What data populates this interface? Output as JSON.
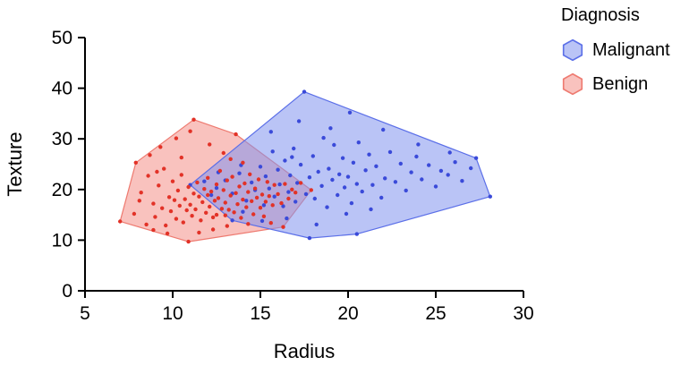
{
  "legend": {
    "title": "Diagnosis"
  },
  "chart_data": {
    "type": "scatter",
    "title": "",
    "xlabel": "Radius",
    "ylabel": "Texture",
    "xlim": [
      5,
      30
    ],
    "ylim": [
      0,
      50
    ],
    "x_ticks": [
      5,
      10,
      15,
      20,
      25,
      30
    ],
    "y_ticks": [
      0,
      10,
      20,
      30,
      40,
      50
    ],
    "grid": false,
    "legend_position": "top-right",
    "series": [
      {
        "name": "Malignant",
        "point_color": "#3a4ad9",
        "hull_fill": "#8293ee",
        "hull_stroke": "#5b6fe8",
        "hull_opacity": 0.55,
        "hull": [
          [
            11.0,
            20.9
          ],
          [
            17.5,
            39.3
          ],
          [
            27.3,
            26.2
          ],
          [
            28.1,
            18.6
          ],
          [
            20.5,
            11.2
          ],
          [
            17.8,
            10.4
          ],
          [
            13.4,
            13.9
          ]
        ],
        "points": [
          [
            13.0,
            21.8
          ],
          [
            13.8,
            23.2
          ],
          [
            14.2,
            17.8
          ],
          [
            14.5,
            21.4
          ],
          [
            14.7,
            19.9
          ],
          [
            15.0,
            24.5
          ],
          [
            15.2,
            16.9
          ],
          [
            15.3,
            22.6
          ],
          [
            15.5,
            20.2
          ],
          [
            15.7,
            27.5
          ],
          [
            15.8,
            18.6
          ],
          [
            16.0,
            23.9
          ],
          [
            16.1,
            21.0
          ],
          [
            16.3,
            16.7
          ],
          [
            16.4,
            25.7
          ],
          [
            16.6,
            19.5
          ],
          [
            16.7,
            22.8
          ],
          [
            16.9,
            28.1
          ],
          [
            17.0,
            17.6
          ],
          [
            17.1,
            21.3
          ],
          [
            17.3,
            24.9
          ],
          [
            17.5,
            39.3
          ],
          [
            17.6,
            19.1
          ],
          [
            17.8,
            10.4
          ],
          [
            17.8,
            22.4
          ],
          [
            18.0,
            26.6
          ],
          [
            18.1,
            18.2
          ],
          [
            18.3,
            23.5
          ],
          [
            18.5,
            20.7
          ],
          [
            18.6,
            30.2
          ],
          [
            18.8,
            16.5
          ],
          [
            18.9,
            24.1
          ],
          [
            19.1,
            21.9
          ],
          [
            19.2,
            28.8
          ],
          [
            19.4,
            18.9
          ],
          [
            19.5,
            23.0
          ],
          [
            19.7,
            26.2
          ],
          [
            19.8,
            20.4
          ],
          [
            20.0,
            22.5
          ],
          [
            20.2,
            17.3
          ],
          [
            20.3,
            25.3
          ],
          [
            20.5,
            11.2
          ],
          [
            20.5,
            21.1
          ],
          [
            20.6,
            29.3
          ],
          [
            20.8,
            19.6
          ],
          [
            21.0,
            23.8
          ],
          [
            21.2,
            26.9
          ],
          [
            21.4,
            20.9
          ],
          [
            21.6,
            24.6
          ],
          [
            21.9,
            18.4
          ],
          [
            22.1,
            22.2
          ],
          [
            22.4,
            27.4
          ],
          [
            22.7,
            21.5
          ],
          [
            23.0,
            25.1
          ],
          [
            23.3,
            19.8
          ],
          [
            23.6,
            23.4
          ],
          [
            23.9,
            26.5
          ],
          [
            24.2,
            22.0
          ],
          [
            24.6,
            24.8
          ],
          [
            25.0,
            20.6
          ],
          [
            25.3,
            23.7
          ],
          [
            25.7,
            22.9
          ],
          [
            26.1,
            25.4
          ],
          [
            26.5,
            21.7
          ],
          [
            27.0,
            24.2
          ],
          [
            27.3,
            26.2
          ],
          [
            28.1,
            18.6
          ],
          [
            16.5,
            14.3
          ],
          [
            18.2,
            13.1
          ],
          [
            19.9,
            15.2
          ],
          [
            21.3,
            16.1
          ],
          [
            15.1,
            13.8
          ],
          [
            14.0,
            15.6
          ],
          [
            13.4,
            19.2
          ],
          [
            12.5,
            20.3
          ],
          [
            11.8,
            21.6
          ],
          [
            11.0,
            20.9
          ],
          [
            12.2,
            18.9
          ],
          [
            13.4,
            13.9
          ],
          [
            15.6,
            31.4
          ],
          [
            17.2,
            33.5
          ],
          [
            19.0,
            32.1
          ],
          [
            20.1,
            35.2
          ],
          [
            22.0,
            31.8
          ],
          [
            24.0,
            28.9
          ],
          [
            25.8,
            27.3
          ],
          [
            16.8,
            26.4
          ],
          [
            13.9,
            24.8
          ],
          [
            12.6,
            23.4
          ]
        ]
      },
      {
        "name": "Benign",
        "point_color": "#e23227",
        "hull_fill": "#f59a93",
        "hull_stroke": "#ee7a70",
        "hull_opacity": 0.6,
        "hull": [
          [
            11.2,
            33.8
          ],
          [
            13.6,
            30.9
          ],
          [
            17.9,
            19.9
          ],
          [
            16.3,
            12.6
          ],
          [
            10.9,
            9.7
          ],
          [
            7.0,
            13.7
          ],
          [
            7.9,
            25.3
          ]
        ],
        "points": [
          [
            7.0,
            13.7
          ],
          [
            7.8,
            15.2
          ],
          [
            7.9,
            25.3
          ],
          [
            8.2,
            19.4
          ],
          [
            8.5,
            13.1
          ],
          [
            8.6,
            22.7
          ],
          [
            8.9,
            17.2
          ],
          [
            9.0,
            14.6
          ],
          [
            9.2,
            20.8
          ],
          [
            9.4,
            16.3
          ],
          [
            9.5,
            24.1
          ],
          [
            9.6,
            12.9
          ],
          [
            9.8,
            18.5
          ],
          [
            9.9,
            15.7
          ],
          [
            10.0,
            21.6
          ],
          [
            10.1,
            17.9
          ],
          [
            10.2,
            14.2
          ],
          [
            10.3,
            19.8
          ],
          [
            10.4,
            16.8
          ],
          [
            10.5,
            22.9
          ],
          [
            10.6,
            13.5
          ],
          [
            10.7,
            18.1
          ],
          [
            10.8,
            15.9
          ],
          [
            10.9,
            9.7
          ],
          [
            10.9,
            20.5
          ],
          [
            11.0,
            17.0
          ],
          [
            11.1,
            14.8
          ],
          [
            11.2,
            33.8
          ],
          [
            11.2,
            19.2
          ],
          [
            11.3,
            16.1
          ],
          [
            11.4,
            21.4
          ],
          [
            11.5,
            18.6
          ],
          [
            11.6,
            13.9
          ],
          [
            11.7,
            17.5
          ],
          [
            11.8,
            20.1
          ],
          [
            11.9,
            15.4
          ],
          [
            12.0,
            18.9
          ],
          [
            12.0,
            22.3
          ],
          [
            12.1,
            16.6
          ],
          [
            12.2,
            19.6
          ],
          [
            12.3,
            14.5
          ],
          [
            12.4,
            17.8
          ],
          [
            12.5,
            21.0
          ],
          [
            12.5,
            15.0
          ],
          [
            12.6,
            18.3
          ],
          [
            12.7,
            23.7
          ],
          [
            12.8,
            16.2
          ],
          [
            12.9,
            19.9
          ],
          [
            13.0,
            14.9
          ],
          [
            13.0,
            17.4
          ],
          [
            13.1,
            21.8
          ],
          [
            13.2,
            16.0
          ],
          [
            13.3,
            18.8
          ],
          [
            13.4,
            22.5
          ],
          [
            13.5,
            15.5
          ],
          [
            13.6,
            30.9
          ],
          [
            13.6,
            19.3
          ],
          [
            13.7,
            17.1
          ],
          [
            13.8,
            20.6
          ],
          [
            13.9,
            14.4
          ],
          [
            14.0,
            18.0
          ],
          [
            14.1,
            21.2
          ],
          [
            14.2,
            16.5
          ],
          [
            14.3,
            19.5
          ],
          [
            14.4,
            23.0
          ],
          [
            14.5,
            17.7
          ],
          [
            14.6,
            15.1
          ],
          [
            14.7,
            20.2
          ],
          [
            14.8,
            18.4
          ],
          [
            14.9,
            22.0
          ],
          [
            15.0,
            16.4
          ],
          [
            15.1,
            19.0
          ],
          [
            15.2,
            14.7
          ],
          [
            15.3,
            17.6
          ],
          [
            15.4,
            21.5
          ],
          [
            15.5,
            18.7
          ],
          [
            15.7,
            16.9
          ],
          [
            15.8,
            20.9
          ],
          [
            16.0,
            19.1
          ],
          [
            16.2,
            17.3
          ],
          [
            16.4,
            21.1
          ],
          [
            16.6,
            18.2
          ],
          [
            16.8,
            20.0
          ],
          [
            17.0,
            19.4
          ],
          [
            17.3,
            21.3
          ],
          [
            17.9,
            19.9
          ],
          [
            8.7,
            26.8
          ],
          [
            9.3,
            28.4
          ],
          [
            10.2,
            30.1
          ],
          [
            11.0,
            31.5
          ],
          [
            12.1,
            28.9
          ],
          [
            12.9,
            27.2
          ],
          [
            13.3,
            26.0
          ],
          [
            14.0,
            25.3
          ],
          [
            10.5,
            26.3
          ],
          [
            9.1,
            23.5
          ],
          [
            8.1,
            17.8
          ],
          [
            11.5,
            11.5
          ],
          [
            12.3,
            12.1
          ],
          [
            13.1,
            12.8
          ],
          [
            14.3,
            13.2
          ],
          [
            15.6,
            13.4
          ],
          [
            16.3,
            12.6
          ],
          [
            9.7,
            11.3
          ],
          [
            8.9,
            12.0
          ]
        ]
      }
    ]
  }
}
